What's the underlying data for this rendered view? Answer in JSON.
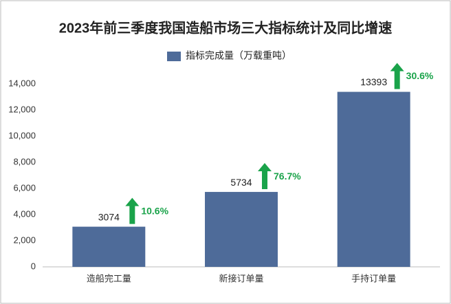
{
  "chart_data": {
    "type": "bar",
    "title": "2023年前三季度我国造船市场三大指标统计及同比增速",
    "categories": [
      "造船完工量",
      "新接订单量",
      "手持订单量"
    ],
    "series": [
      {
        "name": "指标完成量（万载重吨）",
        "color": "#4e6b99",
        "values": [
          3074,
          5734,
          13393
        ]
      }
    ],
    "annotations": [
      "10.6%",
      "76.7%",
      "30.6%"
    ],
    "annotation_color": "#1aa34a",
    "ylim": [
      0,
      14000
    ],
    "yticks": [
      {
        "value": 0,
        "label": "0"
      },
      {
        "value": 2000,
        "label": "2,000"
      },
      {
        "value": 4000,
        "label": "4,000"
      },
      {
        "value": 6000,
        "label": "6,000"
      },
      {
        "value": 8000,
        "label": "8,000"
      },
      {
        "value": 10000,
        "label": "10,000"
      },
      {
        "value": 12000,
        "label": "12,000"
      },
      {
        "value": 14000,
        "label": "14,000"
      }
    ],
    "grid": false
  }
}
